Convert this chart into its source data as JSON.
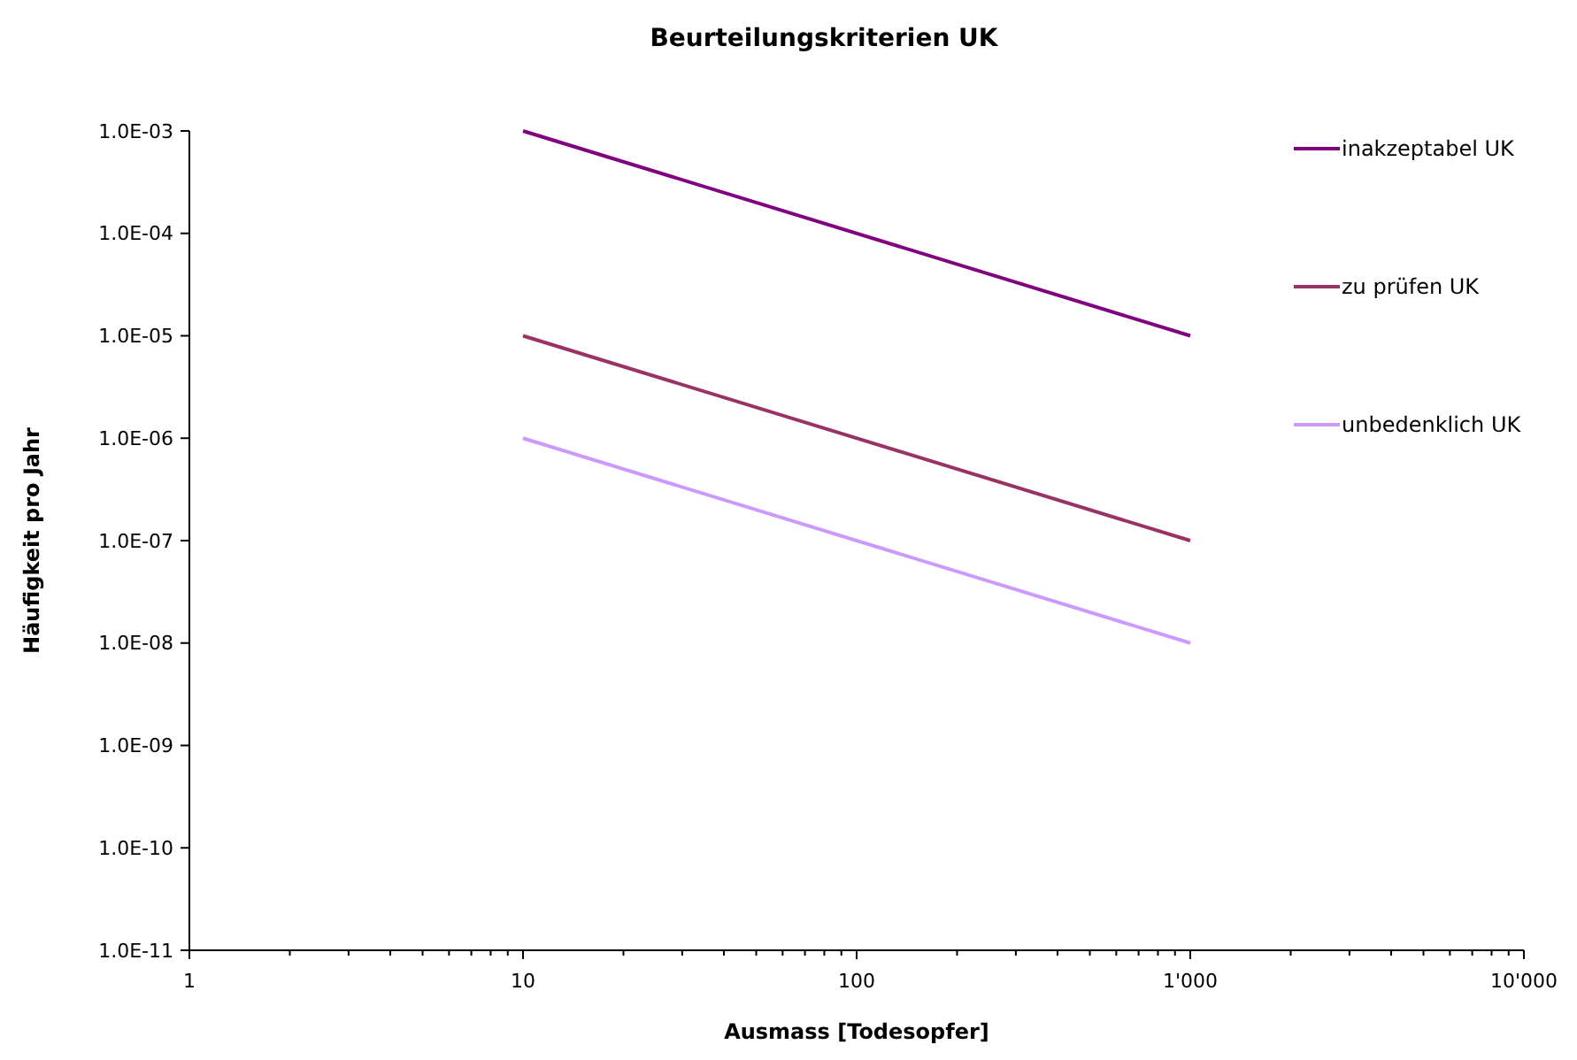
{
  "chart_data": {
    "type": "line",
    "title": "Beurteilungskriterien UK",
    "xlabel": "Ausmass [Todesopfer]",
    "ylabel": "Häufigkeit pro Jahr",
    "log": "xy",
    "grid": false,
    "legend": "top right",
    "marker": "none",
    "line_style": "solid",
    "xlim": [
      1,
      10000
    ],
    "xticks": [
      1,
      {
        "value": 2,
        "label": null
      },
      {
        "value": 3,
        "label": null
      },
      {
        "value": 4,
        "label": null
      },
      {
        "value": 5,
        "label": null
      },
      {
        "value": 6,
        "label": null
      },
      {
        "value": 7,
        "label": null
      },
      {
        "value": 8,
        "label": null
      },
      {
        "value": 9,
        "label": null
      },
      10,
      {
        "value": 20,
        "label": null
      },
      {
        "value": 30,
        "label": null
      },
      {
        "value": 40,
        "label": null
      },
      {
        "value": 50,
        "label": null
      },
      {
        "value": 60,
        "label": null
      },
      {
        "value": 70,
        "label": null
      },
      {
        "value": 80,
        "label": null
      },
      {
        "value": 90,
        "label": null
      },
      100,
      {
        "value": 200,
        "label": null
      },
      {
        "value": 300,
        "label": null
      },
      {
        "value": 400,
        "label": null
      },
      {
        "value": 500,
        "label": null
      },
      {
        "value": 600,
        "label": null
      },
      {
        "value": 700,
        "label": null
      },
      {
        "value": 800,
        "label": null
      },
      {
        "value": 900,
        "label": null
      },
      {
        "value": 1000,
        "label": "1'000"
      },
      {
        "value": 2000,
        "label": null
      },
      {
        "value": 3000,
        "label": null
      },
      {
        "value": 4000,
        "label": null
      },
      {
        "value": 5000,
        "label": null
      },
      {
        "value": 6000,
        "label": null
      },
      {
        "value": 7000,
        "label": null
      },
      {
        "value": 8000,
        "label": null
      },
      {
        "value": 9000,
        "label": null
      },
      {
        "value": 10000,
        "label": "10'000"
      }
    ],
    "ylim": [
      1e-11,
      0.001
    ],
    "yticks": [
      {
        "value": 1e-11,
        "label": "1.0E-11"
      },
      {
        "value": 1e-10,
        "label": "1.0E-10"
      },
      {
        "value": 1e-09,
        "label": "1.0E-09"
      },
      {
        "value": 1e-08,
        "label": "1.0E-08"
      },
      {
        "value": 1e-07,
        "label": "1.0E-07"
      },
      {
        "value": 1e-06,
        "label": "1.0E-06"
      },
      {
        "value": 1e-05,
        "label": "1.0E-05"
      },
      {
        "value": 0.0001,
        "label": "1.0E-04"
      },
      {
        "value": 0.001,
        "label": "1.0E-03"
      }
    ],
    "x": [
      10,
      1000
    ],
    "series": [
      {
        "name": "inakzeptabel UK",
        "color": "#800080",
        "values": [
          0.001,
          1e-05
        ]
      },
      {
        "name": "zu prüfen UK",
        "color": "#993366",
        "values": [
          1e-05,
          1e-07
        ]
      },
      {
        "name": "unbedenklich UK",
        "color": "#cc99ff",
        "values": [
          1e-06,
          1e-08
        ]
      }
    ]
  }
}
